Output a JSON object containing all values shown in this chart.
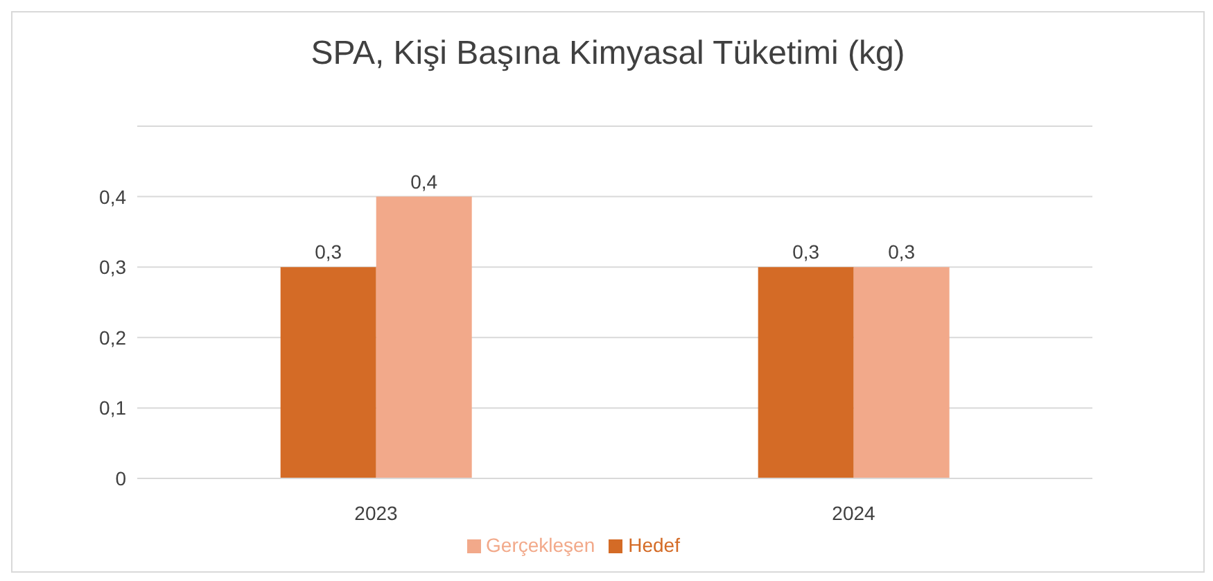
{
  "chart_data": {
    "type": "bar",
    "title": "SPA, Kişi Başına Kimyasal Tüketimi (kg)",
    "categories": [
      "2023",
      "2024"
    ],
    "series": [
      {
        "name": "Hedef",
        "color": "#d46b26",
        "values": [
          0.3,
          0.3
        ],
        "value_labels": [
          "0,3",
          "0,3"
        ]
      },
      {
        "name": "Gerçekleşen",
        "color": "#f2a98a",
        "values": [
          0.4,
          0.3
        ],
        "value_labels": [
          "0,4",
          "0,3"
        ]
      }
    ],
    "ylim": [
      0,
      0.5
    ],
    "yticks": [
      {
        "value": 0,
        "label": "0"
      },
      {
        "value": 0.1,
        "label": "0,1"
      },
      {
        "value": 0.2,
        "label": "0,2"
      },
      {
        "value": 0.3,
        "label": "0,3"
      },
      {
        "value": 0.4,
        "label": "0,4"
      },
      {
        "value": 0.5,
        "label": null
      }
    ],
    "grid": "y",
    "legend": "bottom"
  }
}
